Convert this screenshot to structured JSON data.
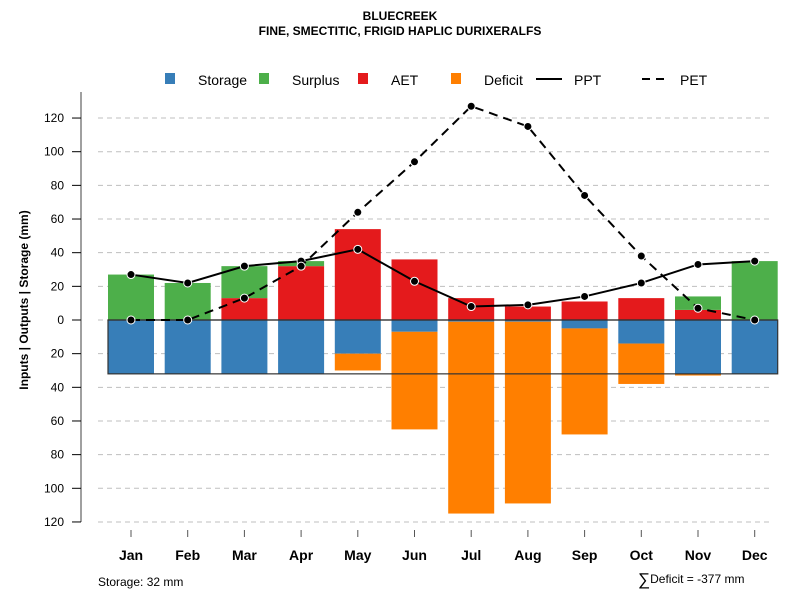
{
  "chart_data": {
    "type": "bar",
    "title": "BLUECREEK",
    "subtitle": "FINE, SMECTITIC, FRIGID HAPLIC DURIXERALFS",
    "ylabel": "Inputs | Outputs | Storage    (mm)",
    "xlabel": "",
    "ylim": [
      -120,
      130
    ],
    "yticks": [
      120,
      100,
      80,
      60,
      40,
      20,
      0,
      -20,
      -40,
      -60,
      -80,
      -100,
      -120
    ],
    "ytick_labels": [
      "120",
      "100",
      "80",
      "60",
      "40",
      "20",
      "0",
      "20",
      "40",
      "60",
      "80",
      "100",
      "120"
    ],
    "grid": true,
    "legend_position": "top",
    "categories": [
      "Jan",
      "Feb",
      "Mar",
      "Apr",
      "May",
      "Jun",
      "Jul",
      "Aug",
      "Sep",
      "Oct",
      "Nov",
      "Dec"
    ],
    "legend": [
      {
        "name": "Storage",
        "kind": "box",
        "color": "#377EB8"
      },
      {
        "name": "Surplus",
        "kind": "box",
        "color": "#4DAF4A"
      },
      {
        "name": "AET",
        "kind": "box",
        "color": "#E41A1C"
      },
      {
        "name": "Deficit",
        "kind": "box",
        "color": "#FF7F00"
      },
      {
        "name": "PPT",
        "kind": "solid-line",
        "color": "#000000"
      },
      {
        "name": "PET",
        "kind": "dashed-line",
        "color": "#000000"
      }
    ],
    "series": [
      {
        "name": "AET",
        "stack": "above",
        "color": "#E41A1C",
        "values": [
          0,
          0,
          13,
          32,
          54,
          36,
          13,
          8,
          11,
          13,
          6,
          0
        ]
      },
      {
        "name": "Surplus",
        "stack": "above",
        "color": "#4DAF4A",
        "values": [
          27,
          22,
          19,
          3,
          0,
          0,
          0,
          0,
          0,
          0,
          8,
          35
        ]
      },
      {
        "name": "Storage",
        "stack": "below",
        "color": "#377EB8",
        "values": [
          32,
          32,
          32,
          32,
          20,
          7,
          1,
          1,
          5,
          14,
          32,
          32
        ]
      },
      {
        "name": "Deficit",
        "stack": "below",
        "color": "#FF7F00",
        "values": [
          0,
          0,
          0,
          0,
          10,
          58,
          114,
          108,
          63,
          24,
          1,
          0
        ]
      },
      {
        "name": "PPT",
        "type": "line",
        "dash": false,
        "color": "#000000",
        "values": [
          27,
          22,
          32,
          35,
          42,
          23,
          8,
          9,
          14,
          22,
          33,
          35
        ]
      },
      {
        "name": "PET",
        "type": "line",
        "dash": true,
        "color": "#000000",
        "values": [
          0,
          0,
          13,
          32,
          64,
          94,
          127,
          115,
          74,
          38,
          7,
          0
        ]
      }
    ],
    "storage_capacity": 32,
    "annotations": {
      "storage": "Storage: 32 mm",
      "deficit_sum_symbol": "∑",
      "deficit_sum": "Deficit = -377 mm"
    }
  }
}
